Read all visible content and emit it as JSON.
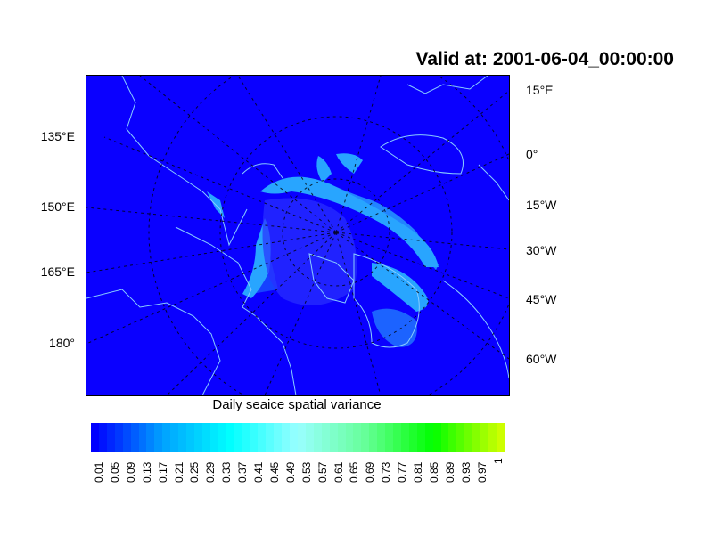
{
  "title": "Valid at: 2001-06-04_00:00:00",
  "left_labels": [
    "135°E",
    "150°E",
    "165°E",
    "180°"
  ],
  "right_labels": [
    "15°E",
    "0°",
    "15°W",
    "30°W",
    "45°W",
    "60°W"
  ],
  "colorbar": {
    "title": "Daily seaice spatial variance",
    "labels": [
      "0.01",
      "0.05",
      "0.09",
      "0.13",
      "0.17",
      "0.21",
      "0.25",
      "0.29",
      "0.33",
      "0.37",
      "0.41",
      "0.45",
      "0.49",
      "0.53",
      "0.57",
      "0.61",
      "0.65",
      "0.69",
      "0.73",
      "0.77",
      "0.81",
      "0.85",
      "0.89",
      "0.93",
      "0.97",
      "1"
    ],
    "color_stops": [
      "#0000ff",
      "#00a0ff",
      "#00ffff",
      "#99ffff",
      "#66ff99",
      "#00ff00",
      "#ccff00"
    ]
  },
  "colors": {
    "ocean": "#0a00ff",
    "coast": "#88ccff",
    "ice": "#33ddff"
  }
}
